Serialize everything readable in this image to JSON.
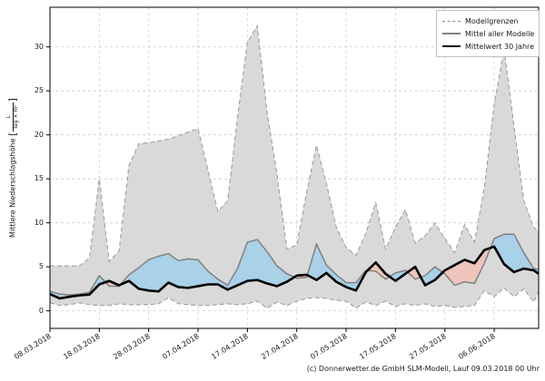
{
  "figure": {
    "caption": "(c) Donnerwetter.de GmbH SLM-Modell, Lauf 09.03.2018 00 Uhr",
    "y_axis_label": {
      "text": "Mittlere Niederschlagshöhe ",
      "bracket_open": "[",
      "unit_numerator": "L",
      "unit_denominator": "Tag × m²",
      "bracket_close": "]"
    },
    "legend": {
      "items": [
        {
          "label": "Modellgrenzen",
          "style": "dashed-gray"
        },
        {
          "label": "Mittel aller Modelle",
          "style": "solid-gray"
        },
        {
          "label": "Mittelwert 30 Jahre",
          "style": "solid-black-thick"
        }
      ]
    }
  },
  "colors": {
    "background": "#ffffff",
    "band": "#d9d9d9",
    "band_edge": "#999999",
    "model_mean_line": "#808080",
    "climate_mean_line": "#000000",
    "above_fill": "#a9d1e8",
    "below_fill": "#eec6bb",
    "grid": "#d4d4d4",
    "axes": "#000000"
  },
  "chart_data": {
    "type": "line",
    "title": "",
    "xlabel": "",
    "ylabel": "Mittlere Niederschlagshöhe [L/(Tag × m²)]",
    "grid": true,
    "legend_position": "upper right",
    "xlim": [
      0,
      99
    ],
    "ylim": [
      -2,
      34.5
    ],
    "x_unit": "Tage ab 08.03.2018",
    "x_tick_days": [
      0,
      10,
      20,
      30,
      40,
      50,
      60,
      70,
      80,
      90
    ],
    "x_tick_labels": [
      "08.03.2018",
      "18.03.2018",
      "28.03.2018",
      "07.04.2018",
      "17.04.2018",
      "27.04.2018",
      "07.05.2018",
      "17.05.2018",
      "27.05.2018",
      "06.06.2018"
    ],
    "y_ticks": [
      0,
      5,
      10,
      15,
      20,
      25,
      30
    ],
    "x_days": [
      0,
      2,
      4,
      6,
      8,
      10,
      12,
      14,
      16,
      18,
      20,
      22,
      24,
      26,
      28,
      30,
      32,
      34,
      36,
      38,
      40,
      42,
      44,
      46,
      48,
      50,
      52,
      54,
      56,
      58,
      60,
      62,
      64,
      66,
      68,
      70,
      72,
      74,
      76,
      78,
      80,
      82,
      84,
      86,
      88,
      90,
      92,
      94,
      96,
      98,
      99
    ],
    "series": [
      {
        "name": "Modellgrenzen (obere Grenze)",
        "role": "upper_bound",
        "values": [
          5.1,
          5.1,
          5.1,
          5.1,
          6.0,
          15.0,
          5.6,
          6.8,
          16.5,
          19.0,
          19.1,
          19.3,
          19.5,
          19.9,
          20.3,
          20.7,
          16.0,
          11.3,
          12.5,
          22.0,
          30.5,
          32.4,
          22.5,
          15.5,
          7.0,
          7.5,
          13.5,
          18.8,
          14.5,
          9.5,
          7.2,
          6.3,
          8.8,
          12.3,
          7.0,
          9.5,
          11.5,
          7.7,
          8.5,
          10.0,
          8.2,
          6.6,
          9.8,
          7.8,
          14.0,
          23.5,
          29.7,
          21.0,
          12.5,
          9.5,
          8.9
        ]
      },
      {
        "name": "Modellgrenzen (untere Grenze)",
        "role": "lower_bound",
        "values": [
          0.9,
          0.6,
          0.7,
          0.9,
          0.7,
          0.6,
          0.6,
          0.8,
          0.7,
          0.7,
          0.7,
          0.8,
          1.5,
          0.8,
          0.7,
          0.6,
          0.6,
          0.7,
          0.8,
          0.7,
          0.8,
          1.1,
          0.3,
          1.0,
          0.6,
          1.1,
          1.4,
          1.5,
          1.4,
          1.2,
          1.1,
          0.3,
          1.0,
          0.6,
          1.1,
          0.5,
          0.8,
          0.6,
          0.8,
          0.5,
          0.6,
          0.4,
          0.5,
          0.6,
          2.3,
          1.6,
          2.6,
          1.6,
          2.5,
          1.0,
          2.2
        ]
      },
      {
        "name": "Mittel aller Modelle",
        "role": "model_mean",
        "values": [
          2.2,
          1.9,
          1.8,
          1.9,
          2.1,
          4.0,
          2.8,
          2.8,
          4.1,
          4.9,
          5.8,
          6.2,
          6.5,
          5.7,
          5.9,
          5.8,
          4.5,
          3.6,
          2.9,
          4.8,
          7.8,
          8.1,
          6.7,
          5.1,
          4.2,
          3.7,
          3.8,
          7.6,
          5.2,
          4.1,
          3.2,
          3.2,
          4.6,
          4.5,
          3.6,
          4.3,
          4.6,
          3.6,
          4.0,
          5.0,
          4.2,
          2.9,
          3.3,
          3.1,
          5.4,
          8.2,
          8.7,
          8.7,
          6.6,
          4.8,
          4.7
        ]
      },
      {
        "name": "Mittelwert 30 Jahre",
        "role": "climate_mean_30y",
        "values": [
          1.9,
          1.4,
          1.6,
          1.75,
          1.85,
          3.0,
          3.4,
          2.9,
          3.4,
          2.5,
          2.3,
          2.2,
          3.2,
          2.7,
          2.6,
          2.8,
          3.0,
          3.0,
          2.4,
          2.9,
          3.4,
          3.5,
          3.1,
          2.8,
          3.3,
          4.0,
          4.1,
          3.5,
          4.3,
          3.3,
          2.7,
          2.3,
          4.4,
          5.5,
          4.2,
          3.4,
          4.2,
          5.0,
          2.9,
          3.5,
          4.6,
          5.2,
          5.8,
          5.4,
          6.9,
          7.3,
          5.3,
          4.4,
          4.8,
          4.6,
          4.2
        ]
      }
    ]
  }
}
